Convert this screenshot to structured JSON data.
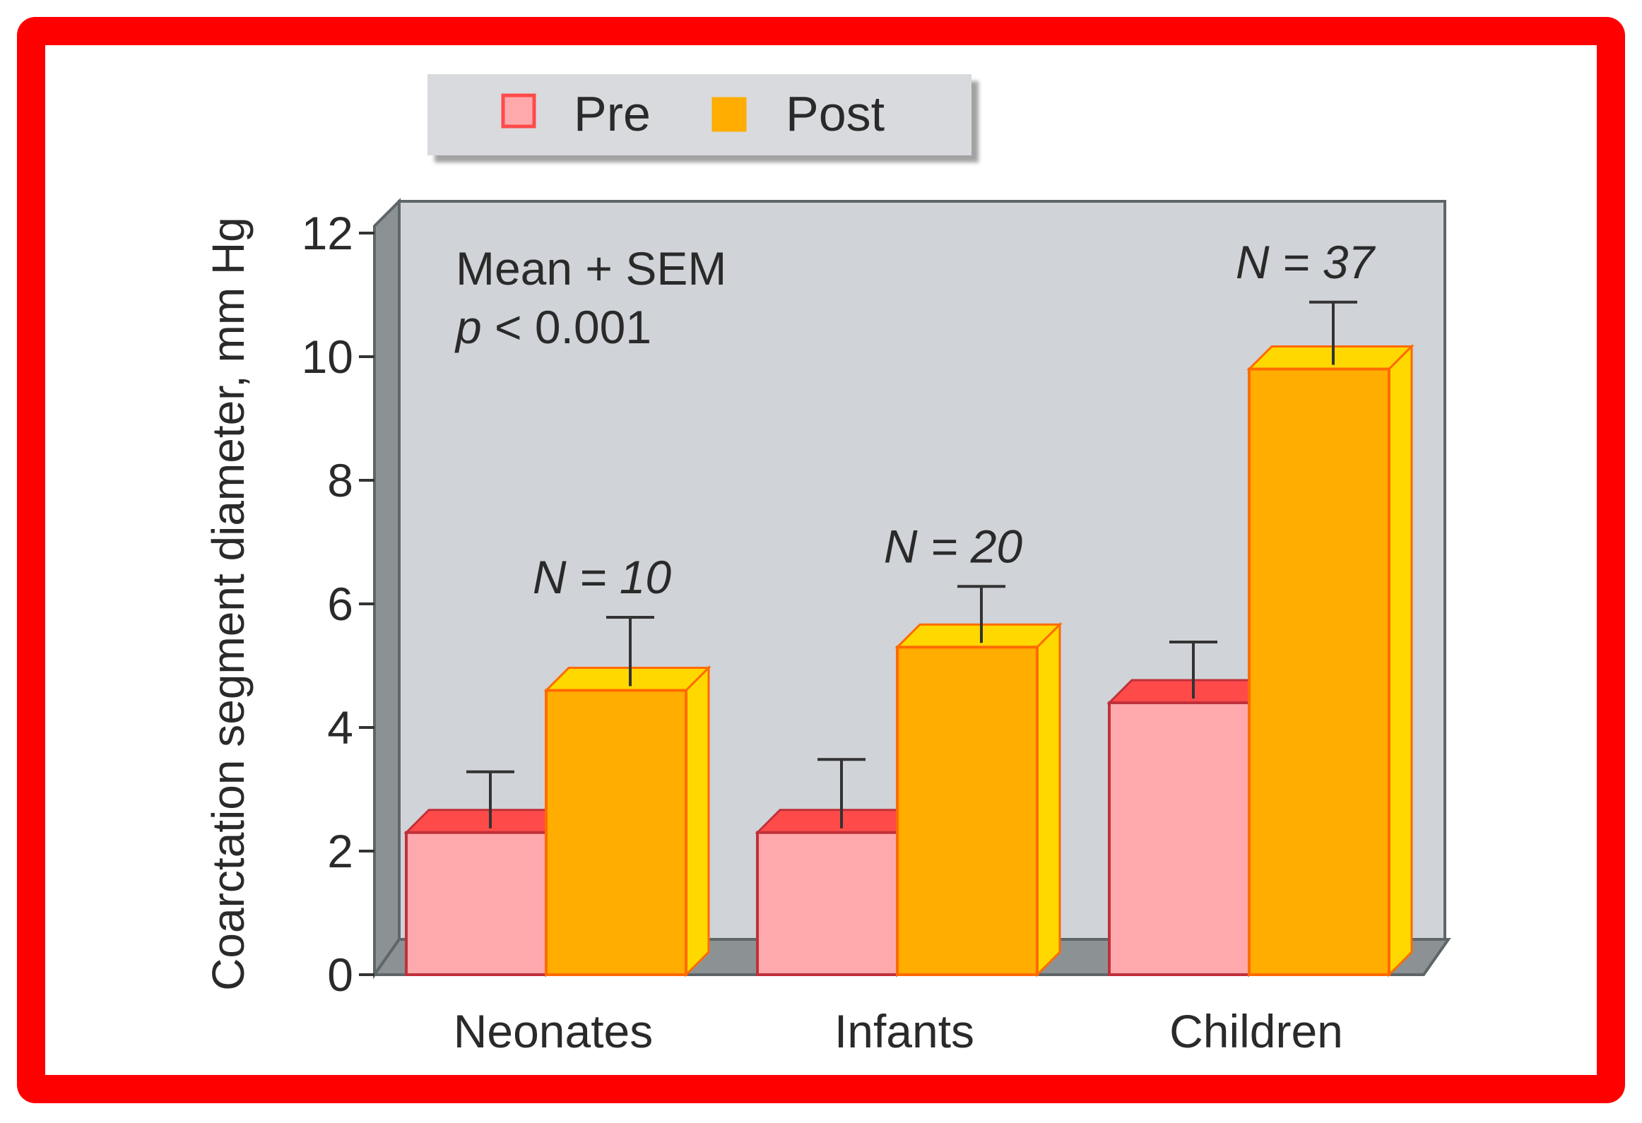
{
  "chart_data": {
    "type": "bar",
    "style": "3d-grouped",
    "ylabel": "Coarctation segment diameter, mm Hg",
    "xlabel": "",
    "ylim": [
      0,
      12
    ],
    "yticks": [
      0,
      2,
      4,
      6,
      8,
      10,
      12
    ],
    "categories": [
      "Neonates",
      "Infants",
      "Children"
    ],
    "series": [
      {
        "name": "Pre",
        "values": [
          2.3,
          2.3,
          4.4
        ],
        "errors": [
          0.8,
          1.0,
          0.8
        ],
        "color": "#ffa9ad",
        "top_color": "#ff4a4a",
        "edge_color": "#c0303a"
      },
      {
        "name": "Post",
        "values": [
          4.6,
          5.3,
          9.8
        ],
        "errors": [
          1.0,
          0.8,
          0.9
        ],
        "color": "#ffad00",
        "top_color": "#ffd800",
        "edge_color": "#ff6a00"
      }
    ],
    "n_labels": [
      {
        "text": "N = 10",
        "category": "Neonates"
      },
      {
        "text": "N = 20",
        "category": "Infants"
      },
      {
        "text": "N = 37",
        "category": "Children"
      }
    ],
    "annotation_line1": "Mean + SEM",
    "annotation_p_symbol": "p",
    "annotation_p_rest": " < 0.001",
    "legend_position": "top-left",
    "background_color": "#d0d3d7",
    "frame_color": "#ff0000"
  }
}
